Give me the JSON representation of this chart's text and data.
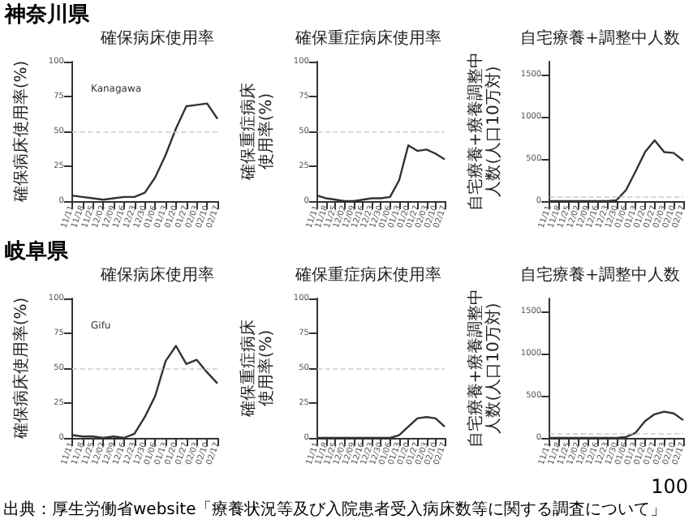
{
  "chart_data": [
    {
      "type": "line",
      "title": "確保病床使用率",
      "ylabel": "確保病床使用率(%)",
      "annotations": [
        "神奈川県",
        "Kanagawa"
      ],
      "categories": [
        "11/11",
        "11/18",
        "11/25",
        "12/02",
        "12/09",
        "12/16",
        "12/23",
        "12/30",
        "01/06",
        "01/13",
        "01/20",
        "01/27",
        "02/03",
        "02/10",
        "02/17"
      ],
      "series": [
        {
          "color": "#333333",
          "values": [
            4,
            3,
            2,
            1,
            2,
            3,
            3,
            6,
            17,
            33,
            52,
            68,
            69,
            70,
            59
          ]
        }
      ],
      "ylim": [
        0,
        100
      ],
      "yticks": [
        0,
        25,
        50,
        75,
        100
      ],
      "ref_lines": [
        {
          "axis": "y",
          "value": 50,
          "color": "#cccccc",
          "line_style": "dashed"
        }
      ],
      "grid": false,
      "marker": "none",
      "line_style": "solid"
    },
    {
      "type": "line",
      "title": "確保重症病床使用率",
      "ylabel": "確保重症病床使用率(%)",
      "categories": [
        "11/11",
        "11/18",
        "11/25",
        "12/02",
        "12/09",
        "12/16",
        "12/23",
        "12/30",
        "01/06",
        "01/13",
        "01/20",
        "01/27",
        "02/03",
        "02/10",
        "02/17"
      ],
      "series": [
        {
          "color": "#333333",
          "values": [
            4,
            2,
            1,
            0,
            0,
            1,
            2,
            2,
            3,
            15,
            40,
            36,
            37,
            34,
            30
          ]
        }
      ],
      "ylim": [
        0,
        100
      ],
      "yticks": [
        0,
        25,
        50,
        75,
        100
      ],
      "ref_lines": [
        {
          "axis": "y",
          "value": 50,
          "color": "#cccccc",
          "line_style": "dashed"
        }
      ],
      "grid": false,
      "marker": "none",
      "line_style": "solid"
    },
    {
      "type": "line",
      "title": "自宅療養+調整中人数",
      "ylabel": "自宅療養+療養調整中人数(人口10万対)",
      "categories": [
        "11/11",
        "11/18",
        "11/25",
        "12/02",
        "12/09",
        "12/16",
        "12/23",
        "12/30",
        "01/06",
        "01/13",
        "01/20",
        "01/27",
        "02/03",
        "02/10",
        "02/17"
      ],
      "series": [
        {
          "color": "#333333",
          "values": [
            0,
            0,
            0,
            0,
            0,
            0,
            0,
            10,
            130,
            350,
            580,
            720,
            580,
            570,
            480
          ]
        }
      ],
      "ylim": [
        0,
        1650
      ],
      "yticks": [
        0,
        500,
        1000,
        1500
      ],
      "ref_lines": [
        {
          "axis": "y",
          "value": 60,
          "color": "#cccccc",
          "line_style": "dashed"
        }
      ],
      "grid": false,
      "marker": "none",
      "line_style": "solid"
    },
    {
      "type": "line",
      "title": "確保病床使用率",
      "ylabel": "確保病床使用率(%)",
      "annotations": [
        "岐阜県",
        "Gifu"
      ],
      "categories": [
        "11/11",
        "11/18",
        "11/25",
        "12/02",
        "12/09",
        "12/16",
        "12/23",
        "12/30",
        "01/06",
        "01/13",
        "01/20",
        "01/27",
        "02/03",
        "02/10",
        "02/17"
      ],
      "series": [
        {
          "color": "#333333",
          "values": [
            2,
            1,
            1,
            0,
            1,
            0,
            3,
            15,
            30,
            55,
            66,
            53,
            56,
            47,
            39
          ]
        }
      ],
      "ylim": [
        0,
        100
      ],
      "yticks": [
        0,
        25,
        50,
        75,
        100
      ],
      "ref_lines": [
        {
          "axis": "y",
          "value": 50,
          "color": "#cccccc",
          "line_style": "dashed"
        }
      ],
      "grid": false,
      "marker": "none",
      "line_style": "solid"
    },
    {
      "type": "line",
      "title": "確保重症病床使用率",
      "ylabel": "確保重症病床使用率(%)",
      "categories": [
        "11/11",
        "11/18",
        "11/25",
        "12/02",
        "12/09",
        "12/16",
        "12/23",
        "12/30",
        "01/06",
        "01/13",
        "01/20",
        "01/27",
        "02/03",
        "02/10",
        "02/17"
      ],
      "series": [
        {
          "color": "#333333",
          "values": [
            0,
            0,
            0,
            0,
            0,
            0,
            0,
            0,
            0,
            2,
            8,
            14,
            15,
            14,
            8
          ]
        }
      ],
      "ylim": [
        0,
        100
      ],
      "yticks": [
        0,
        25,
        50,
        75,
        100
      ],
      "ref_lines": [
        {
          "axis": "y",
          "value": 50,
          "color": "#cccccc",
          "line_style": "dashed"
        }
      ],
      "grid": false,
      "marker": "none",
      "line_style": "solid"
    },
    {
      "type": "line",
      "title": "自宅療養+調整中人数",
      "ylabel": "自宅療養+療養調整中人数(人口10万対)",
      "annotations": [
        "100",
        "出典：厚生労働省website「療養状況等及び入院患者受入病床数等に関する調査について」"
      ],
      "categories": [
        "11/11",
        "11/18",
        "11/25",
        "12/02",
        "12/09",
        "12/16",
        "12/23",
        "12/30",
        "01/06",
        "01/13",
        "01/20",
        "01/27",
        "02/03",
        "02/10",
        "02/17"
      ],
      "series": [
        {
          "color": "#333333",
          "values": [
            0,
            0,
            0,
            0,
            0,
            0,
            0,
            0,
            10,
            60,
            200,
            280,
            310,
            290,
            210
          ]
        }
      ],
      "ylim": [
        0,
        1650
      ],
      "yticks": [
        0,
        500,
        1000,
        1500
      ],
      "ref_lines": [
        {
          "axis": "y",
          "value": 60,
          "color": "#cccccc",
          "line_style": "dashed"
        }
      ],
      "grid": false,
      "marker": "none",
      "line_style": "solid"
    }
  ]
}
